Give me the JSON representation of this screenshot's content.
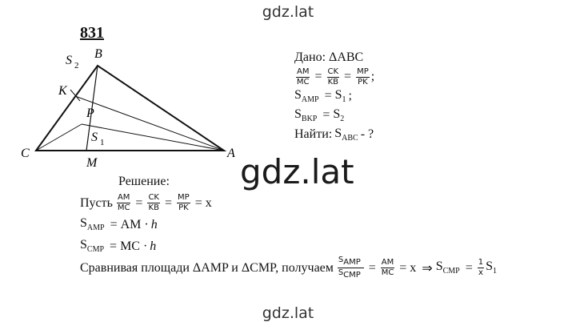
{
  "header": {
    "site": "gdz.lat",
    "number": "831"
  },
  "figure": {
    "labels": [
      {
        "text": "B"
      },
      {
        "text": "S",
        "sub": "2"
      },
      {
        "text": "K"
      },
      {
        "text": "P"
      },
      {
        "text": "C"
      },
      {
        "text": "S",
        "sub": "1"
      },
      {
        "text": "M"
      },
      {
        "text": "A"
      }
    ]
  },
  "given": {
    "lines": [
      [
        {
          "t": "Дано: ΔABC"
        }
      ],
      [
        {
          "frac": [
            "AM",
            "MC"
          ]
        },
        {
          "op": "="
        },
        {
          "frac": [
            "CK",
            "KB"
          ]
        },
        {
          "op": "="
        },
        {
          "frac": [
            "MP",
            "PK"
          ]
        },
        {
          "t": ";"
        }
      ],
      [
        {
          "sub": [
            "S",
            "AMP"
          ]
        },
        {
          "op": "="
        },
        {
          "sub": [
            "S",
            "1"
          ]
        },
        {
          "t": ";"
        }
      ],
      [
        {
          "sub": [
            "S",
            "BKP"
          ]
        },
        {
          "op": "="
        },
        {
          "sub": [
            "S",
            "2"
          ]
        }
      ],
      [
        {
          "t": "Найти:"
        },
        {
          "sub": [
            "S",
            "ABC"
          ]
        },
        {
          "t": "- ?"
        }
      ]
    ]
  },
  "watermark": "gdz.lat",
  "solution": {
    "title": "Решение:",
    "lines": [
      [
        {
          "t": "Пусть"
        },
        {
          "frac": [
            "AM",
            "MC"
          ]
        },
        {
          "op": "="
        },
        {
          "frac": [
            "CK",
            "KB"
          ]
        },
        {
          "op": "="
        },
        {
          "frac": [
            "MP",
            "PK"
          ]
        },
        {
          "op": "="
        },
        {
          "t": "x"
        }
      ],
      [
        {
          "sub": [
            "S",
            "AMP"
          ]
        },
        {
          "op": "="
        },
        {
          "t": "AM ·"
        },
        {
          "i": "h"
        }
      ],
      [
        {
          "sub": [
            "S",
            "CMP"
          ]
        },
        {
          "op": "="
        },
        {
          "t": "MC ·"
        },
        {
          "i": "h"
        }
      ],
      [
        {
          "t": "Сравнивая площади ΔAMP и ΔCMP, получаем"
        },
        {
          "frac2": [
            [
              "S",
              "AMP"
            ],
            [
              "S",
              "CMP"
            ]
          ]
        },
        {
          "op": "="
        },
        {
          "frac": [
            "AM",
            "MC"
          ]
        },
        {
          "op": "="
        },
        {
          "t": "x"
        },
        {
          "op": "⇒"
        },
        {
          "sub": [
            "S",
            "CMP"
          ]
        },
        {
          "op": "="
        },
        {
          "frac": [
            "1",
            "x"
          ]
        },
        {
          "sub": [
            "S",
            "1"
          ]
        }
      ]
    ]
  },
  "footer": {
    "site": "gdz.lat"
  }
}
